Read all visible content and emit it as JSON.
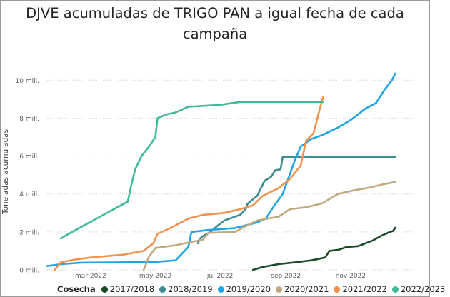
{
  "title_line1": "DJVE acumuladas de TRIGO PAN a igual fecha de cada",
  "title_line2": "campaña",
  "chart_data": {
    "type": "line",
    "title": "DJVE acumuladas de TRIGO PAN a igual fecha de cada campaña",
    "xlabel": "",
    "ylabel": "Toneladas acumuladas",
    "x_unit": "fecha (campaña alineada a 2022)",
    "xlim": [
      "2022-01-19",
      "2022-12-31"
    ],
    "ylim": [
      0,
      10500000
    ],
    "x_ticks": [
      {
        "x": "2022-03-01",
        "label": "mar 2022"
      },
      {
        "x": "2022-05-01",
        "label": "may 2022"
      },
      {
        "x": "2022-07-01",
        "label": "jul 2022"
      },
      {
        "x": "2022-09-01",
        "label": "sep 2022"
      },
      {
        "x": "2022-11-01",
        "label": "nov 2022"
      }
    ],
    "y_ticks": [
      {
        "y": 0,
        "label": "0 mill."
      },
      {
        "y": 2000000,
        "label": "2 mill."
      },
      {
        "y": 4000000,
        "label": "4 mill."
      },
      {
        "y": 6000000,
        "label": "6 mill."
      },
      {
        "y": 8000000,
        "label": "8 mill."
      },
      {
        "y": 10000000,
        "label": "10 mill."
      }
    ],
    "grid": "horizontal",
    "legend": {
      "title": "Cosecha",
      "position": "bottom"
    },
    "series": [
      {
        "name": "2017/2018",
        "color": "#1b4a25",
        "points": [
          [
            "2022-08-01",
            0
          ],
          [
            "2022-08-10",
            150000
          ],
          [
            "2022-08-25",
            300000
          ],
          [
            "2022-09-10",
            400000
          ],
          [
            "2022-09-25",
            500000
          ],
          [
            "2022-10-08",
            650000
          ],
          [
            "2022-10-12",
            1000000
          ],
          [
            "2022-10-20",
            1050000
          ],
          [
            "2022-10-28",
            1200000
          ],
          [
            "2022-11-08",
            1250000
          ],
          [
            "2022-11-15",
            1400000
          ],
          [
            "2022-11-22",
            1550000
          ],
          [
            "2022-11-30",
            1800000
          ],
          [
            "2022-12-08",
            2000000
          ],
          [
            "2022-12-11",
            2050000
          ],
          [
            "2022-12-13",
            2220000
          ]
        ]
      },
      {
        "name": "2018/2019",
        "color": "#3f8c93",
        "points": [
          [
            "2022-06-10",
            1400000
          ],
          [
            "2022-06-13",
            1700000
          ],
          [
            "2022-06-17",
            1850000
          ],
          [
            "2022-06-22",
            2000000
          ],
          [
            "2022-06-28",
            2300000
          ],
          [
            "2022-07-05",
            2600000
          ],
          [
            "2022-07-20",
            2900000
          ],
          [
            "2022-07-25",
            3200000
          ],
          [
            "2022-07-27",
            3500000
          ],
          [
            "2022-08-05",
            3900000
          ],
          [
            "2022-08-12",
            4700000
          ],
          [
            "2022-08-18",
            4900000
          ],
          [
            "2022-08-22",
            5250000
          ],
          [
            "2022-08-27",
            5300000
          ],
          [
            "2022-08-29",
            5950000
          ],
          [
            "2022-09-15",
            5950000
          ],
          [
            "2022-10-15",
            5950000
          ],
          [
            "2022-12-13",
            5950000
          ]
        ]
      },
      {
        "name": "2019/2020",
        "color": "#20a4e6",
        "points": [
          [
            "2022-01-19",
            200000
          ],
          [
            "2022-02-01",
            300000
          ],
          [
            "2022-02-20",
            380000
          ],
          [
            "2022-04-01",
            400000
          ],
          [
            "2022-05-01",
            420000
          ],
          [
            "2022-05-20",
            500000
          ],
          [
            "2022-06-01",
            1200000
          ],
          [
            "2022-06-04",
            2000000
          ],
          [
            "2022-06-20",
            2100000
          ],
          [
            "2022-07-15",
            2200000
          ],
          [
            "2022-08-05",
            2500000
          ],
          [
            "2022-08-13",
            2700000
          ],
          [
            "2022-08-20",
            3300000
          ],
          [
            "2022-08-29",
            4000000
          ],
          [
            "2022-09-09",
            5700000
          ],
          [
            "2022-09-15",
            6500000
          ],
          [
            "2022-09-25",
            6900000
          ],
          [
            "2022-10-05",
            7100000
          ],
          [
            "2022-10-20",
            7500000
          ],
          [
            "2022-11-01",
            7900000
          ],
          [
            "2022-11-15",
            8500000
          ],
          [
            "2022-11-25",
            8800000
          ],
          [
            "2022-12-03",
            9500000
          ],
          [
            "2022-12-10",
            10000000
          ],
          [
            "2022-12-13",
            10350000
          ]
        ]
      },
      {
        "name": "2020/2021",
        "color": "#c1a97f",
        "points": [
          [
            "2022-04-20",
            0
          ],
          [
            "2022-04-25",
            700000
          ],
          [
            "2022-05-01",
            1150000
          ],
          [
            "2022-05-20",
            1300000
          ],
          [
            "2022-06-15",
            1600000
          ],
          [
            "2022-06-20",
            1950000
          ],
          [
            "2022-07-15",
            2000000
          ],
          [
            "2022-07-25",
            2300000
          ],
          [
            "2022-08-05",
            2600000
          ],
          [
            "2022-08-25",
            2800000
          ],
          [
            "2022-09-05",
            3200000
          ],
          [
            "2022-09-20",
            3300000
          ],
          [
            "2022-10-05",
            3500000
          ],
          [
            "2022-10-20",
            4000000
          ],
          [
            "2022-11-05",
            4200000
          ],
          [
            "2022-11-20",
            4350000
          ],
          [
            "2022-12-01",
            4500000
          ],
          [
            "2022-12-10",
            4600000
          ],
          [
            "2022-12-13",
            4650000
          ]
        ]
      },
      {
        "name": "2021/2022",
        "color": "#f1934f",
        "points": [
          [
            "2022-01-26",
            0
          ],
          [
            "2022-02-01",
            400000
          ],
          [
            "2022-02-15",
            550000
          ],
          [
            "2022-03-01",
            650000
          ],
          [
            "2022-04-01",
            800000
          ],
          [
            "2022-04-20",
            1000000
          ],
          [
            "2022-04-29",
            1400000
          ],
          [
            "2022-05-03",
            1900000
          ],
          [
            "2022-05-15",
            2200000
          ],
          [
            "2022-06-01",
            2700000
          ],
          [
            "2022-06-15",
            2900000
          ],
          [
            "2022-07-05",
            3000000
          ],
          [
            "2022-07-20",
            3200000
          ],
          [
            "2022-08-01",
            3400000
          ],
          [
            "2022-08-10",
            3900000
          ],
          [
            "2022-08-25",
            4300000
          ],
          [
            "2022-09-05",
            4800000
          ],
          [
            "2022-09-15",
            5500000
          ],
          [
            "2022-09-20",
            6800000
          ],
          [
            "2022-09-27",
            7200000
          ],
          [
            "2022-10-03",
            8500000
          ],
          [
            "2022-10-06",
            9100000
          ]
        ]
      },
      {
        "name": "2022/2023",
        "color": "#3fba99",
        "points": [
          [
            "2022-02-01",
            1650000
          ],
          [
            "2022-02-05",
            1800000
          ],
          [
            "2022-04-05",
            3600000
          ],
          [
            "2022-04-08",
            4400000
          ],
          [
            "2022-04-12",
            5300000
          ],
          [
            "2022-04-18",
            6000000
          ],
          [
            "2022-04-25",
            6500000
          ],
          [
            "2022-05-01",
            7000000
          ],
          [
            "2022-05-03",
            8000000
          ],
          [
            "2022-05-12",
            8200000
          ],
          [
            "2022-05-20",
            8300000
          ],
          [
            "2022-06-01",
            8600000
          ],
          [
            "2022-07-01",
            8700000
          ],
          [
            "2022-07-20",
            8850000
          ],
          [
            "2022-08-20",
            8850000
          ],
          [
            "2022-10-06",
            8850000
          ]
        ]
      }
    ]
  }
}
